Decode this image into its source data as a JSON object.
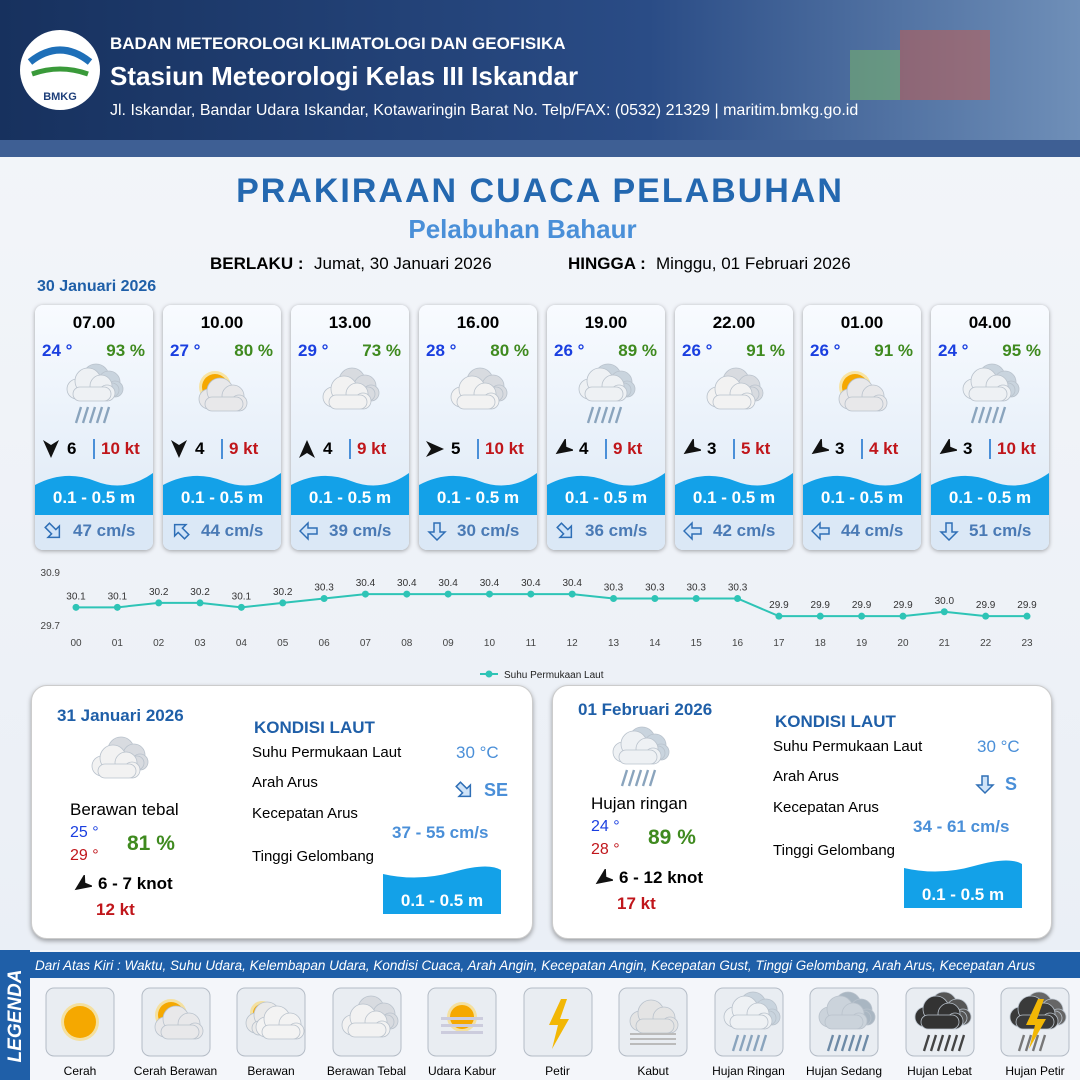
{
  "header": {
    "org": "BADAN METEOROLOGI KLIMATOLOGI DAN GEOFISIKA",
    "station": "Stasiun Meteorologi Kelas III Iskandar",
    "address": "Jl. Iskandar, Bandar Udara Iskandar, Kotawaringin Barat No. Telp/FAX: (0532) 21329 | maritim.bmkg.go.id",
    "logo": "BMKG"
  },
  "title": "PRAKIRAAN CUACA PELABUHAN",
  "subtitle": "Pelabuhan Bahaur",
  "validity": {
    "from_label": "BERLAKU :",
    "from": "Jumat, 30 Januari 2026",
    "to_label": "HINGGA :",
    "to": "Minggu, 01 Februari 2026"
  },
  "day1": "30 Januari 2026",
  "cards": [
    {
      "time": "07.00",
      "temp": "24 °",
      "humidity": "93 %",
      "wind": "6",
      "gust": "10 kt",
      "wave": "0.1 - 0.5 m",
      "current": "47 cm/s"
    },
    {
      "time": "10.00",
      "temp": "27 °",
      "humidity": "80 %",
      "wind": "4",
      "gust": "9 kt",
      "wave": "0.1 - 0.5 m",
      "current": "44 cm/s"
    },
    {
      "time": "13.00",
      "temp": "29 °",
      "humidity": "73 %",
      "wind": "4",
      "gust": "9 kt",
      "wave": "0.1 - 0.5 m",
      "current": "39 cm/s"
    },
    {
      "time": "16.00",
      "temp": "28 °",
      "humidity": "80 %",
      "wind": "5",
      "gust": "10 kt",
      "wave": "0.1 - 0.5 m",
      "current": "30 cm/s"
    },
    {
      "time": "19.00",
      "temp": "26 °",
      "humidity": "89 %",
      "wind": "4",
      "gust": "9 kt",
      "wave": "0.1 - 0.5 m",
      "current": "36 cm/s"
    },
    {
      "time": "22.00",
      "temp": "26 °",
      "humidity": "91 %",
      "wind": "3",
      "gust": "5 kt",
      "wave": "0.1 - 0.5 m",
      "current": "42 cm/s"
    },
    {
      "time": "01.00",
      "temp": "26 °",
      "humidity": "91 %",
      "wind": "3",
      "gust": "4 kt",
      "wave": "0.1 - 0.5 m",
      "current": "44 cm/s"
    },
    {
      "time": "04.00",
      "temp": "24 °",
      "humidity": "95 %",
      "wind": "3",
      "gust": "10 kt",
      "wave": "0.1 - 0.5 m",
      "current": "51 cm/s"
    }
  ],
  "chart_data": {
    "type": "line",
    "categories": [
      "00",
      "01",
      "02",
      "03",
      "04",
      "05",
      "06",
      "07",
      "08",
      "09",
      "10",
      "11",
      "12",
      "13",
      "14",
      "15",
      "16",
      "17",
      "18",
      "19",
      "20",
      "21",
      "22",
      "23"
    ],
    "series": [
      {
        "name": "Suhu Permukaan Laut",
        "color": "#2ec4b6",
        "values": [
          30.1,
          30.1,
          30.2,
          30.2,
          30.1,
          30.2,
          30.3,
          30.4,
          30.4,
          30.4,
          30.4,
          30.4,
          30.4,
          30.3,
          30.3,
          30.3,
          30.3,
          29.9,
          29.9,
          29.9,
          29.9,
          30.0,
          29.9,
          29.9
        ],
        "value_labels": [
          "30.1",
          "30.1",
          "30.2",
          "30.2",
          "30.1",
          "30.2",
          "30.3",
          "30.4",
          "30.4",
          "30.4",
          "30.4",
          "30.4",
          "30.4",
          "30.3",
          "30.3",
          "30.3",
          "30.3",
          "29.9",
          "29.9",
          "29.9",
          "29.9",
          "30.0",
          "29.9",
          "29.9"
        ]
      }
    ],
    "ylim": [
      29.7,
      30.9
    ],
    "yticks": [
      29.7,
      30.9
    ],
    "legend": "bottom"
  },
  "panels": [
    {
      "date": "31 Januari 2026",
      "sea_title": "KONDISI LAUT",
      "sst_label": "Suhu Permukaan Laut",
      "sst": "30 °C",
      "dir_label": "Arah Arus",
      "dir": "SE",
      "speed_label": "Kecepatan Arus",
      "speed": "37 - 55 cm/s",
      "wave_label": "Tinggi Gelombang",
      "wave": "0.1 - 0.5 m",
      "condition": "Berawan tebal",
      "tmin": "25 °",
      "tmax": "29 °",
      "humidity": "81 %",
      "wind": "6 - 7 knot",
      "gust": "12 kt"
    },
    {
      "date": "01 Februari 2026",
      "sea_title": "KONDISI LAUT",
      "sst_label": "Suhu Permukaan Laut",
      "sst": "30 °C",
      "dir_label": "Arah Arus",
      "dir": "S",
      "speed_label": "Kecepatan Arus",
      "speed": "34 - 61 cm/s",
      "wave_label": "Tinggi Gelombang",
      "wave": "0.1 - 0.5 m",
      "condition": "Hujan ringan",
      "tmin": "24 °",
      "tmax": "28 °",
      "humidity": "89 %",
      "wind": "6 - 12 knot",
      "gust": "17 kt"
    }
  ],
  "legend": {
    "title": "LEGENDA",
    "description": "Dari Atas Kiri : Waktu, Suhu Udara, Kelembapan Udara, Kondisi Cuaca, Arah Angin, Kecepatan Angin, Kecepatan Gust, Tinggi Gelombang, Arah Arus, Kecepatan Arus",
    "items": [
      "Cerah",
      "Cerah Berawan",
      "Berawan",
      "Berawan Tebal",
      "Udara Kabur",
      "Petir",
      "Kabut",
      "Hujan Ringan",
      "Hujan Sedang",
      "Hujan Lebat",
      "Hujan Petir"
    ]
  }
}
